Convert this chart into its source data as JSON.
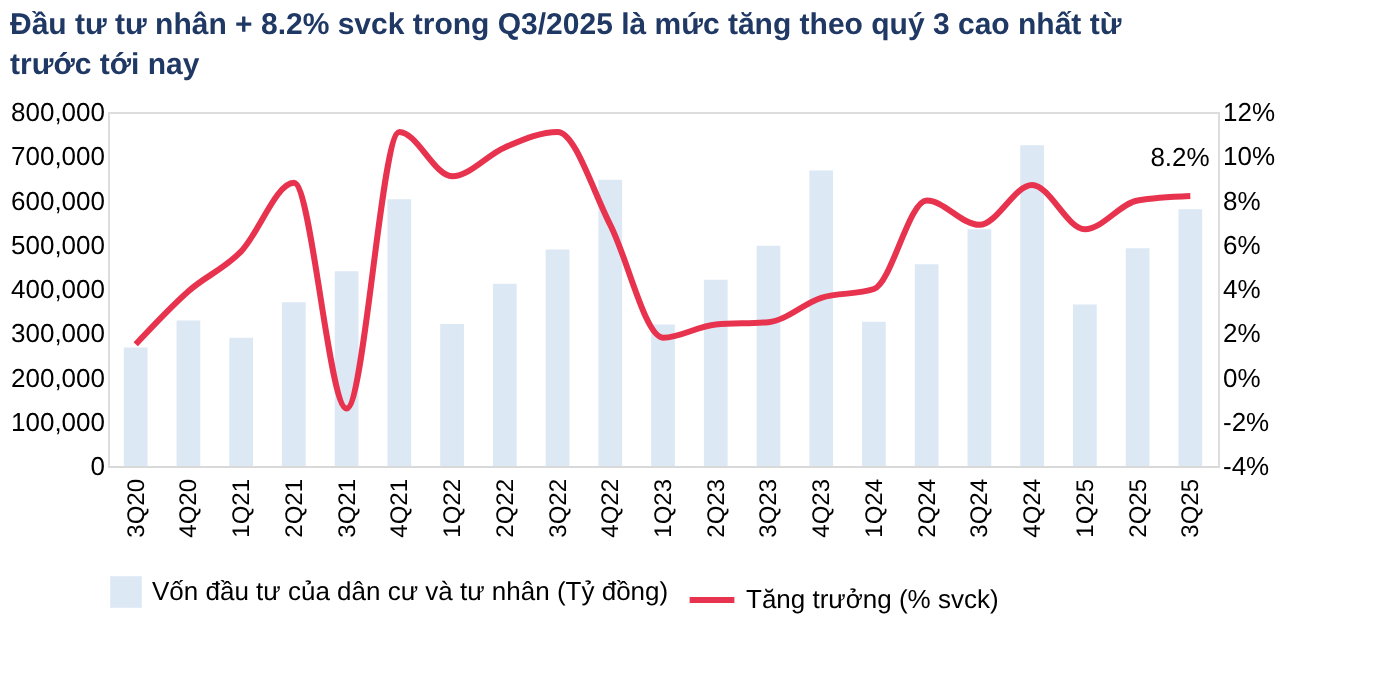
{
  "chart_data": {
    "type": "bar",
    "title": "Đầu tư tư nhân + 8.2% svck trong Q3/2025 là mức tăng theo quý 3 cao nhất từ trước tới nay",
    "categories": [
      "3Q20",
      "4Q20",
      "1Q21",
      "2Q21",
      "3Q21",
      "4Q21",
      "1Q22",
      "2Q22",
      "3Q22",
      "4Q22",
      "1Q23",
      "2Q23",
      "3Q23",
      "4Q23",
      "1Q24",
      "2Q24",
      "3Q24",
      "4Q24",
      "1Q25",
      "2Q25",
      "3Q25"
    ],
    "series": [
      {
        "name": "Vốn đầu tư của dân cư và tư nhân (Tỷ đồng)",
        "color": "#dde8f5",
        "values": [
          268000,
          329000,
          290000,
          370000,
          440000,
          603000,
          321000,
          412000,
          489000,
          647000,
          320000,
          421000,
          498000,
          668000,
          326000,
          456000,
          535000,
          725000,
          365000,
          492000,
          580000
        ]
      },
      {
        "name": "Tăng trưởng (% svck)",
        "type": "line",
        "axis": "y2",
        "color": "#e8334f",
        "values": [
          1.5,
          3.9,
          5.7,
          8.8,
          -1.4,
          11.1,
          9.1,
          10.4,
          11.1,
          6.9,
          1.8,
          2.4,
          2.5,
          3.6,
          4.0,
          8.0,
          6.9,
          8.7,
          6.7,
          8.0,
          8.2
        ]
      }
    ],
    "ylim": [
      0,
      800000
    ],
    "yticks": [
      0,
      {
        "value": 100000,
        "label": "100,000"
      },
      {
        "value": 200000,
        "label": "200,000"
      },
      {
        "value": 300000,
        "label": "300,000"
      },
      {
        "value": 400000,
        "label": "400,000"
      },
      {
        "value": 500000,
        "label": "500,000"
      },
      {
        "value": 600000,
        "label": "600,000"
      },
      {
        "value": 700000,
        "label": "700,000"
      },
      {
        "value": 800000,
        "label": "800,000"
      }
    ],
    "y2lim": [
      -4,
      12
    ],
    "y2ticks": [
      {
        "value": -4,
        "label": "-4%"
      },
      {
        "value": -2,
        "label": "-2%"
      },
      {
        "value": 0,
        "label": "0%"
      },
      {
        "value": 2,
        "label": "2%"
      },
      {
        "value": 4,
        "label": "4%"
      },
      {
        "value": 6,
        "label": "6%"
      },
      {
        "value": 8,
        "label": "8%"
      },
      {
        "value": 10,
        "label": "10%"
      },
      {
        "value": 12,
        "label": "12%"
      }
    ],
    "annotations": [
      "8.2%"
    ],
    "grid": false,
    "legend": "bottom",
    "line_style": "solid",
    "marker": "none"
  }
}
